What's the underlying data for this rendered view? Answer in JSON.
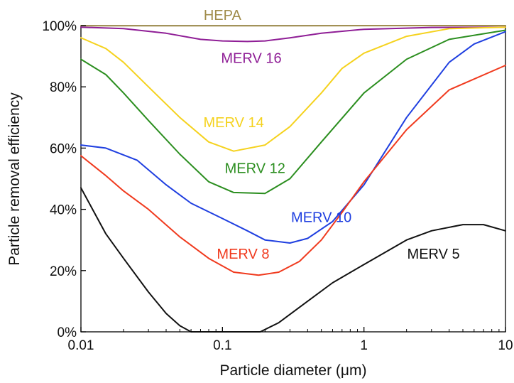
{
  "chart_data": {
    "type": "line",
    "xlabel": "Particle diameter (μm)",
    "ylabel": "Particle removal efficiency",
    "x_scale": "log",
    "xlim": [
      0.01,
      10
    ],
    "ylim": [
      0,
      100
    ],
    "x_ticks": [
      {
        "value": 0.01,
        "label": "0.01"
      },
      {
        "value": 0.1,
        "label": "0.1"
      },
      {
        "value": 1,
        "label": "1"
      },
      {
        "value": 10,
        "label": "10"
      }
    ],
    "y_ticks": [
      {
        "value": 0,
        "label": "0%"
      },
      {
        "value": 20,
        "label": "20%"
      },
      {
        "value": 40,
        "label": "40%"
      },
      {
        "value": 60,
        "label": "60%"
      },
      {
        "value": 80,
        "label": "80%"
      },
      {
        "value": 100,
        "label": "100%"
      }
    ],
    "grid": false,
    "legend": "inline labels",
    "series": [
      {
        "name": "HEPA",
        "color": "#a08c4a",
        "label_at": [
          0.1,
          103.5
        ],
        "points": [
          [
            0.01,
            99.95
          ],
          [
            0.1,
            99.93
          ],
          [
            0.3,
            99.95
          ],
          [
            1,
            99.97
          ],
          [
            10,
            99.99
          ]
        ]
      },
      {
        "name": "MERV 16",
        "color": "#8f1e96",
        "label_at": [
          0.16,
          89.5
        ],
        "points": [
          [
            0.01,
            99.5
          ],
          [
            0.02,
            99
          ],
          [
            0.04,
            97.5
          ],
          [
            0.07,
            95.5
          ],
          [
            0.1,
            95
          ],
          [
            0.15,
            94.8
          ],
          [
            0.2,
            95
          ],
          [
            0.3,
            96
          ],
          [
            0.5,
            97.5
          ],
          [
            1,
            98.8
          ],
          [
            3,
            99.4
          ],
          [
            10,
            99.5
          ]
        ]
      },
      {
        "name": "MERV 14",
        "color": "#f5d21e",
        "label_at": [
          0.12,
          68.5
        ],
        "points": [
          [
            0.01,
            96
          ],
          [
            0.015,
            92.5
          ],
          [
            0.02,
            88
          ],
          [
            0.03,
            80
          ],
          [
            0.05,
            70
          ],
          [
            0.08,
            62
          ],
          [
            0.12,
            59
          ],
          [
            0.2,
            61
          ],
          [
            0.3,
            67
          ],
          [
            0.5,
            78
          ],
          [
            0.7,
            86
          ],
          [
            1,
            91
          ],
          [
            2,
            96.5
          ],
          [
            4,
            99
          ],
          [
            10,
            99.5
          ]
        ]
      },
      {
        "name": "MERV 12",
        "color": "#2b8e1f",
        "label_at": [
          0.17,
          53.5
        ],
        "points": [
          [
            0.01,
            89
          ],
          [
            0.015,
            84
          ],
          [
            0.02,
            78
          ],
          [
            0.03,
            69
          ],
          [
            0.05,
            58
          ],
          [
            0.08,
            49
          ],
          [
            0.12,
            45.5
          ],
          [
            0.2,
            45.2
          ],
          [
            0.3,
            50
          ],
          [
            0.5,
            62
          ],
          [
            1,
            78
          ],
          [
            2,
            89
          ],
          [
            4,
            95.5
          ],
          [
            10,
            98.5
          ]
        ]
      },
      {
        "name": "MERV 10",
        "color": "#1f3fe0",
        "label_at": [
          0.5,
          37.5
        ],
        "points": [
          [
            0.01,
            61
          ],
          [
            0.015,
            60
          ],
          [
            0.025,
            56
          ],
          [
            0.04,
            48
          ],
          [
            0.06,
            42
          ],
          [
            0.1,
            37
          ],
          [
            0.15,
            33
          ],
          [
            0.2,
            30
          ],
          [
            0.3,
            29
          ],
          [
            0.4,
            30.5
          ],
          [
            0.6,
            36
          ],
          [
            1,
            48
          ],
          [
            2,
            70
          ],
          [
            4,
            88
          ],
          [
            6,
            94
          ],
          [
            10,
            98
          ]
        ]
      },
      {
        "name": "MERV 8",
        "color": "#f03a1e",
        "label_at": [
          0.14,
          25.5
        ],
        "points": [
          [
            0.01,
            57.5
          ],
          [
            0.015,
            51
          ],
          [
            0.02,
            46
          ],
          [
            0.03,
            40
          ],
          [
            0.05,
            31
          ],
          [
            0.08,
            24
          ],
          [
            0.12,
            19.5
          ],
          [
            0.18,
            18.5
          ],
          [
            0.25,
            19.5
          ],
          [
            0.35,
            23
          ],
          [
            0.5,
            30
          ],
          [
            0.7,
            39
          ],
          [
            1,
            49
          ],
          [
            2,
            66
          ],
          [
            4,
            79
          ],
          [
            10,
            87
          ]
        ]
      },
      {
        "name": "MERV 5",
        "color": "#111111",
        "label_at": [
          3.1,
          25.5
        ],
        "points": [
          [
            0.01,
            47
          ],
          [
            0.015,
            32
          ],
          [
            0.02,
            24
          ],
          [
            0.03,
            13
          ],
          [
            0.04,
            6
          ],
          [
            0.05,
            2
          ],
          [
            0.06,
            0
          ],
          [
            0.185,
            0
          ],
          [
            0.25,
            3
          ],
          [
            0.4,
            10
          ],
          [
            0.6,
            16
          ],
          [
            1,
            22
          ],
          [
            2,
            30
          ],
          [
            3,
            33
          ],
          [
            5,
            35
          ],
          [
            7,
            35
          ],
          [
            10,
            33
          ]
        ]
      }
    ]
  }
}
